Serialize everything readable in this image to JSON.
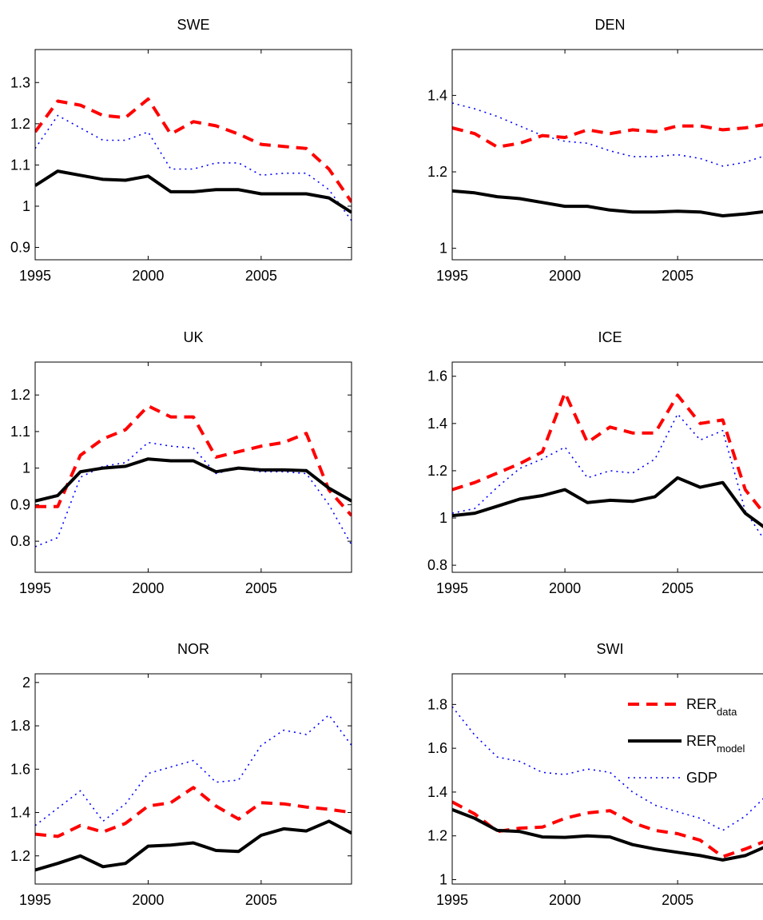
{
  "chart_data": [
    {
      "type": "line",
      "title": "SWE",
      "xlim": [
        1995,
        2009
      ],
      "ylim": [
        0.87,
        1.38
      ],
      "xticks": [
        1995,
        2000,
        2005
      ],
      "yticks": [
        0.9,
        1,
        1.1,
        1.2,
        1.3
      ],
      "ytick_labels": [
        "0.9",
        "1",
        "1.1",
        "1.2",
        "1.3"
      ],
      "x": [
        1995,
        1996,
        1997,
        1998,
        1999,
        2000,
        2001,
        2002,
        2003,
        2004,
        2005,
        2006,
        2007,
        2008,
        2009
      ],
      "series": [
        {
          "key": "data",
          "values": [
            1.18,
            1.255,
            1.245,
            1.22,
            1.215,
            1.26,
            1.175,
            1.205,
            1.195,
            1.175,
            1.15,
            1.145,
            1.14,
            1.09,
            1.01
          ]
        },
        {
          "key": "model",
          "values": [
            1.05,
            1.085,
            1.075,
            1.065,
            1.063,
            1.073,
            1.035,
            1.035,
            1.04,
            1.04,
            1.03,
            1.03,
            1.03,
            1.02,
            0.985
          ]
        },
        {
          "key": "gdp",
          "values": [
            1.14,
            1.22,
            1.19,
            1.16,
            1.16,
            1.18,
            1.09,
            1.09,
            1.105,
            1.105,
            1.075,
            1.08,
            1.08,
            1.04,
            0.965
          ]
        }
      ]
    },
    {
      "type": "line",
      "title": "DEN",
      "xlim": [
        1995,
        2009
      ],
      "ylim": [
        0.97,
        1.52
      ],
      "xticks": [
        1995,
        2000,
        2005
      ],
      "yticks": [
        1,
        1.2,
        1.4
      ],
      "ytick_labels": [
        "1",
        "1.2",
        "1.4"
      ],
      "x": [
        1995,
        1996,
        1997,
        1998,
        1999,
        2000,
        2001,
        2002,
        2003,
        2004,
        2005,
        2006,
        2007,
        2008,
        2009
      ],
      "series": [
        {
          "key": "data",
          "values": [
            1.315,
            1.3,
            1.265,
            1.275,
            1.295,
            1.29,
            1.31,
            1.3,
            1.31,
            1.305,
            1.32,
            1.32,
            1.31,
            1.315,
            1.325
          ]
        },
        {
          "key": "model",
          "values": [
            1.15,
            1.145,
            1.135,
            1.13,
            1.12,
            1.11,
            1.11,
            1.1,
            1.095,
            1.095,
            1.097,
            1.095,
            1.085,
            1.09,
            1.097
          ]
        },
        {
          "key": "gdp",
          "values": [
            1.38,
            1.365,
            1.345,
            1.32,
            1.295,
            1.28,
            1.275,
            1.255,
            1.24,
            1.24,
            1.245,
            1.235,
            1.215,
            1.225,
            1.245
          ]
        }
      ]
    },
    {
      "type": "line",
      "title": "UK",
      "xlim": [
        1995,
        2009
      ],
      "ylim": [
        0.715,
        1.29
      ],
      "xticks": [
        1995,
        2000,
        2005
      ],
      "yticks": [
        0.8,
        0.9,
        1,
        1.1,
        1.2
      ],
      "ytick_labels": [
        "0.8",
        "0.9",
        "1",
        "1.1",
        "1.2"
      ],
      "x": [
        1995,
        1996,
        1997,
        1998,
        1999,
        2000,
        2001,
        2002,
        2003,
        2004,
        2005,
        2006,
        2007,
        2008,
        2009
      ],
      "series": [
        {
          "key": "data",
          "values": [
            0.895,
            0.895,
            1.035,
            1.08,
            1.105,
            1.17,
            1.14,
            1.14,
            1.03,
            1.045,
            1.06,
            1.07,
            1.095,
            0.94,
            0.87
          ]
        },
        {
          "key": "model",
          "values": [
            0.91,
            0.925,
            0.99,
            1.0,
            1.005,
            1.025,
            1.02,
            1.02,
            0.99,
            1.0,
            0.995,
            0.995,
            0.993,
            0.945,
            0.91
          ]
        },
        {
          "key": "gdp",
          "values": [
            0.785,
            0.81,
            0.975,
            1.005,
            1.015,
            1.07,
            1.06,
            1.055,
            0.985,
            1.0,
            0.99,
            0.99,
            0.985,
            0.9,
            0.79
          ]
        }
      ]
    },
    {
      "type": "line",
      "title": "ICE",
      "xlim": [
        1995,
        2009
      ],
      "ylim": [
        0.77,
        1.66
      ],
      "xticks": [
        1995,
        2000,
        2005
      ],
      "yticks": [
        0.8,
        1,
        1.2,
        1.4,
        1.6
      ],
      "ytick_labels": [
        "0.8",
        "1",
        "1.2",
        "1.4",
        "1.6"
      ],
      "x": [
        1995,
        1996,
        1997,
        1998,
        1999,
        2000,
        2001,
        2002,
        2003,
        2004,
        2005,
        2006,
        2007,
        2008,
        2009
      ],
      "series": [
        {
          "key": "data",
          "values": [
            1.12,
            1.15,
            1.19,
            1.23,
            1.28,
            1.53,
            1.32,
            1.385,
            1.36,
            1.36,
            1.52,
            1.4,
            1.415,
            1.12,
            1.0
          ]
        },
        {
          "key": "model",
          "values": [
            1.01,
            1.02,
            1.05,
            1.08,
            1.095,
            1.12,
            1.065,
            1.075,
            1.07,
            1.09,
            1.17,
            1.13,
            1.15,
            1.02,
            0.95
          ]
        },
        {
          "key": "gdp",
          "values": [
            1.02,
            1.04,
            1.13,
            1.21,
            1.25,
            1.3,
            1.17,
            1.2,
            1.19,
            1.25,
            1.44,
            1.33,
            1.37,
            1.03,
            0.885
          ]
        }
      ]
    },
    {
      "type": "line",
      "title": "NOR",
      "xlim": [
        1995,
        2009
      ],
      "ylim": [
        1.07,
        2.04
      ],
      "xticks": [
        1995,
        2000,
        2005
      ],
      "yticks": [
        1.2,
        1.4,
        1.6,
        1.8,
        2
      ],
      "ytick_labels": [
        "1.2",
        "1.4",
        "1.6",
        "1.8",
        "2"
      ],
      "x": [
        1995,
        1996,
        1997,
        1998,
        1999,
        2000,
        2001,
        2002,
        2003,
        2004,
        2005,
        2006,
        2007,
        2008,
        2009
      ],
      "series": [
        {
          "key": "data",
          "values": [
            1.3,
            1.29,
            1.34,
            1.31,
            1.35,
            1.43,
            1.445,
            1.515,
            1.43,
            1.37,
            1.445,
            1.44,
            1.425,
            1.415,
            1.4
          ]
        },
        {
          "key": "model",
          "values": [
            1.135,
            1.165,
            1.2,
            1.15,
            1.165,
            1.245,
            1.25,
            1.26,
            1.225,
            1.22,
            1.295,
            1.325,
            1.315,
            1.36,
            1.305
          ]
        },
        {
          "key": "gdp",
          "values": [
            1.34,
            1.42,
            1.5,
            1.36,
            1.44,
            1.58,
            1.61,
            1.64,
            1.54,
            1.55,
            1.71,
            1.78,
            1.76,
            1.85,
            1.71
          ]
        }
      ]
    },
    {
      "type": "line",
      "title": "SWI",
      "xlim": [
        1995,
        2009
      ],
      "ylim": [
        0.98,
        1.94
      ],
      "xticks": [
        1995,
        2000,
        2005
      ],
      "yticks": [
        1,
        1.2,
        1.4,
        1.6,
        1.8
      ],
      "ytick_labels": [
        "1",
        "1.2",
        "1.4",
        "1.6",
        "1.8"
      ],
      "x": [
        1995,
        1996,
        1997,
        1998,
        1999,
        2000,
        2001,
        2002,
        2003,
        2004,
        2005,
        2006,
        2007,
        2008,
        2009
      ],
      "series": [
        {
          "key": "data",
          "values": [
            1.355,
            1.3,
            1.22,
            1.235,
            1.24,
            1.28,
            1.305,
            1.315,
            1.26,
            1.225,
            1.21,
            1.18,
            1.105,
            1.14,
            1.18
          ]
        },
        {
          "key": "model",
          "values": [
            1.32,
            1.28,
            1.225,
            1.22,
            1.195,
            1.193,
            1.2,
            1.195,
            1.16,
            1.14,
            1.125,
            1.11,
            1.09,
            1.11,
            1.155
          ]
        },
        {
          "key": "gdp",
          "values": [
            1.79,
            1.66,
            1.56,
            1.54,
            1.49,
            1.48,
            1.505,
            1.49,
            1.4,
            1.34,
            1.31,
            1.28,
            1.225,
            1.29,
            1.39
          ]
        }
      ]
    }
  ],
  "legend": {
    "placement": "top-right of SWI panel",
    "entries": [
      {
        "key": "data",
        "base": "RER",
        "sub": "data"
      },
      {
        "key": "model",
        "base": "RER",
        "sub": "model"
      },
      {
        "key": "gdp",
        "base": "GDP",
        "sub": ""
      }
    ]
  },
  "styles": {
    "data": {
      "color": "#ff0000",
      "dash": "dashed"
    },
    "model": {
      "color": "#000000",
      "dash": "solid"
    },
    "gdp": {
      "color": "#0000ff",
      "dash": "dotted"
    }
  }
}
